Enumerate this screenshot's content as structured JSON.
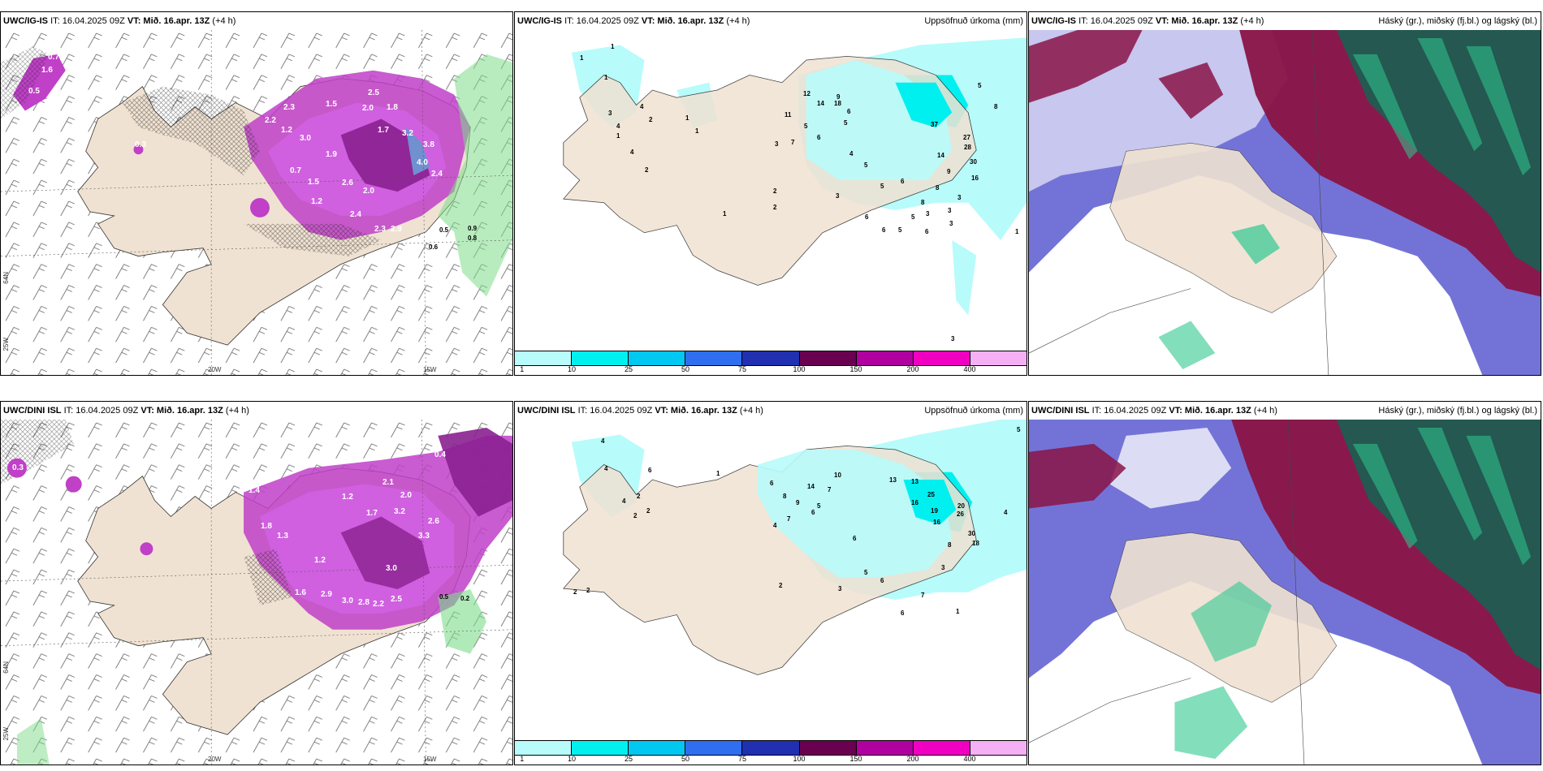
{
  "panels": [
    {
      "model": "UWC/IG-IS",
      "it": "IT: 16.04.2025 09Z",
      "vt": "VT: Mið. 16.apr. 13Z",
      "lead": "(+4 h)",
      "right": ""
    },
    {
      "model": "UWC/IG-IS",
      "it": "IT: 16.04.2025 09Z",
      "vt": "VT: Mið. 16.apr. 13Z",
      "lead": "(+4 h)",
      "right": "Uppsöfnuð úrkoma (mm)"
    },
    {
      "model": "UWC/IG-IS",
      "it": "IT: 16.04.2025 09Z",
      "vt": "VT: Mið. 16.apr. 13Z",
      "lead": "(+4 h)",
      "right": "Háský (gr.), miðský (fj.bl.) og lágský (bl.)"
    },
    {
      "model": "UWC/DINI ISL",
      "it": "IT: 16.04.2025 09Z",
      "vt": "VT: Mið. 16.apr. 13Z",
      "lead": "(+4 h)",
      "right": ""
    },
    {
      "model": "UWC/DINI ISL",
      "it": "IT: 16.04.2025 09Z",
      "vt": "VT: Mið. 16.apr. 13Z",
      "lead": "(+4 h)",
      "right": "Uppsöfnuð úrkoma (mm)"
    },
    {
      "model": "UWC/DINI ISL",
      "it": "IT: 16.04.2025 09Z",
      "vt": "VT: Mið. 16.apr. 13Z",
      "lead": "(+4 h)",
      "right": "Háský (gr.), miðský (fj.bl.) og lágský (bl.)"
    }
  ],
  "latlon": {
    "w20": "20W",
    "w15": "15W",
    "w25": "25W",
    "n64": "64N"
  },
  "legend": {
    "ticks": [
      "1",
      "10",
      "25",
      "50",
      "75",
      "100",
      "150",
      "200",
      "400"
    ],
    "colors": [
      "#b8fbfb",
      "#00f0f0",
      "#00c8f0",
      "#2f6fef",
      "#2030b0",
      "#6a0050",
      "#b000a0",
      "#f000c0",
      "#f5b0f5"
    ]
  },
  "precip_top": [
    "1",
    "1",
    "3",
    "4",
    "2",
    "1",
    "1",
    "4",
    "2",
    "1",
    "12",
    "14",
    "18",
    "5",
    "8",
    "9",
    "6",
    "11",
    "3",
    "7",
    "6",
    "5",
    "5",
    "4",
    "3",
    "37",
    "27",
    "28",
    "14",
    "30",
    "9",
    "16",
    "8",
    "6",
    "5",
    "3",
    "8",
    "5",
    "3",
    "3",
    "1",
    "2",
    "6",
    "5",
    "6",
    "3",
    "3",
    "1",
    "4",
    "1",
    "2",
    "5",
    "6"
  ],
  "precip_bot": [
    "4",
    "4",
    "6",
    "2",
    "4",
    "2",
    "2",
    "1",
    "6",
    "8",
    "14",
    "10",
    "7",
    "9",
    "13",
    "13",
    "7",
    "6",
    "4",
    "5",
    "16",
    "25",
    "20",
    "26",
    "19",
    "30",
    "4",
    "16",
    "18",
    "6",
    "8",
    "5",
    "3",
    "3",
    "2",
    "2",
    "5",
    "6",
    "7",
    "1",
    "6",
    "2"
  ],
  "snow_top": [
    "0.7",
    "1.6",
    "0.5",
    "1.5",
    "2.5",
    "2.0",
    "1.8",
    "2.3",
    "1.2",
    "3.0",
    "2.2",
    "1.7",
    "3.2",
    "3.8",
    "4.0",
    "2.4",
    "1.9",
    "2.6",
    "2.0",
    "1.5",
    "1.2",
    "0.7",
    "2.4",
    "2.9",
    "2.3",
    "0.3",
    "0.5",
    "0.9",
    "0.8",
    "0.6"
  ],
  "snow_bot": [
    "0.3",
    "0.4",
    "1.4",
    "2.1",
    "2.0",
    "1.7",
    "1.2",
    "3.2",
    "3.0",
    "3.3",
    "2.6",
    "1.6",
    "2.9",
    "3.0",
    "2.8",
    "2.2",
    "2.5",
    "1.2",
    "0.5",
    "0.2",
    "1.3",
    "1.8"
  ]
}
